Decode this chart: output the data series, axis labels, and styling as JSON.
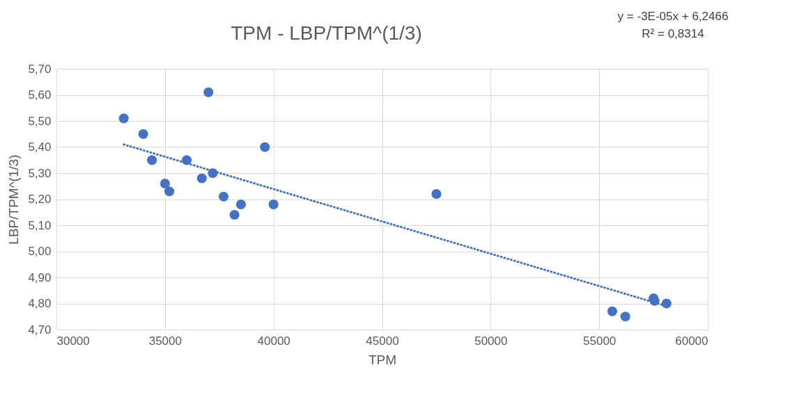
{
  "chart_data": {
    "type": "scatter",
    "title": "TPM - LBP/TPM^(1/3)",
    "xlabel": "TPM",
    "ylabel": "LBP/TPM^(1/3)",
    "annotations": [
      "y = -3E-05x + 6,2466",
      "R² = 0,8314"
    ],
    "series": [
      {
        "color": "#4472c4",
        "x": [
          33100,
          34000,
          34400,
          35000,
          35200,
          36000,
          36700,
          37200,
          37000,
          37700,
          38500,
          38200,
          39600,
          40000,
          47500,
          55600,
          56200,
          57500,
          57550,
          58100
        ],
        "values": [
          5.51,
          5.45,
          5.35,
          5.26,
          5.23,
          5.35,
          5.28,
          5.3,
          5.61,
          5.21,
          5.18,
          5.14,
          5.4,
          5.18,
          5.22,
          4.77,
          4.75,
          4.82,
          4.81,
          4.8
        ]
      },
      {
        "type": "line",
        "line_style": "dotted",
        "marker": "none",
        "color": "#4472c4",
        "x": [
          33100,
          58100
        ],
        "values": [
          5.41,
          4.79
        ]
      }
    ],
    "xlim": [
      30000,
      60000
    ],
    "xticks": [
      30000,
      35000,
      40000,
      45000,
      50000,
      55000,
      60000
    ],
    "ylim": [
      4.7,
      5.7
    ],
    "yticks": [
      {
        "value": 4.7,
        "label": "4,70"
      },
      {
        "value": 4.8,
        "label": "4,80"
      },
      {
        "value": 4.9,
        "label": "4,90"
      },
      {
        "value": 5.0,
        "label": "5,00"
      },
      {
        "value": 5.1,
        "label": "5,10"
      },
      {
        "value": 5.2,
        "label": "5,20"
      },
      {
        "value": 5.3,
        "label": "5,30"
      },
      {
        "value": 5.4,
        "label": "5,40"
      },
      {
        "value": 5.5,
        "label": "5,50"
      },
      {
        "value": 5.6,
        "label": "5,60"
      },
      {
        "value": 5.7,
        "label": "5,70"
      }
    ],
    "grid": true
  }
}
